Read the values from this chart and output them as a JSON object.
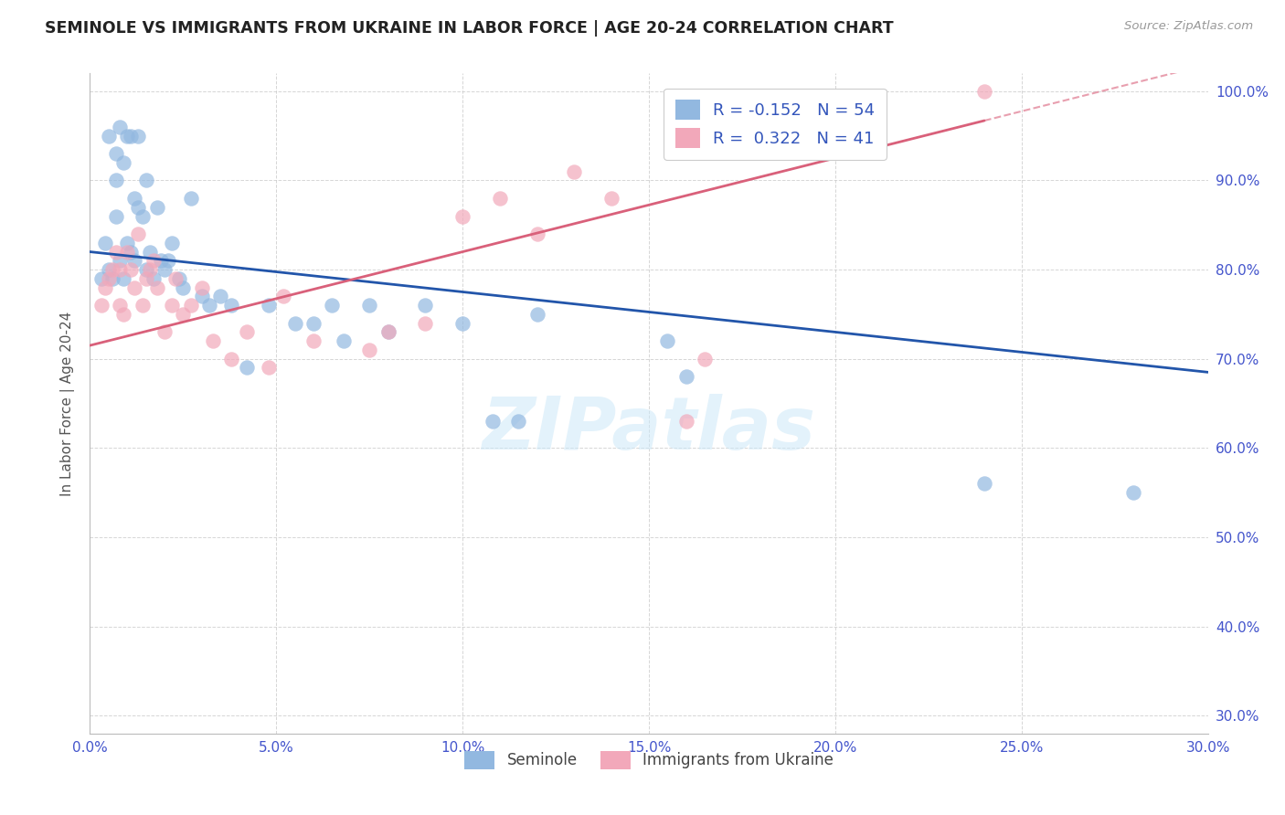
{
  "title": "SEMINOLE VS IMMIGRANTS FROM UKRAINE IN LABOR FORCE | AGE 20-24 CORRELATION CHART",
  "source": "Source: ZipAtlas.com",
  "ylabel": "In Labor Force | Age 20-24",
  "xlim": [
    0.0,
    0.3
  ],
  "ylim": [
    0.28,
    1.02
  ],
  "xtick_vals": [
    0.0,
    0.05,
    0.1,
    0.15,
    0.2,
    0.25,
    0.3
  ],
  "xtick_labels": [
    "0.0%",
    "5.0%",
    "10.0%",
    "15.0%",
    "20.0%",
    "25.0%",
    "30.0%"
  ],
  "ytick_vals": [
    0.3,
    0.4,
    0.5,
    0.6,
    0.7,
    0.8,
    0.9,
    1.0
  ],
  "ytick_labels": [
    "30.0%",
    "40.0%",
    "50.0%",
    "60.0%",
    "70.0%",
    "80.0%",
    "90.0%",
    "100.0%"
  ],
  "seminole_color": "#92b8e0",
  "ukraine_color": "#f2a8ba",
  "seminole_line_color": "#2255aa",
  "ukraine_line_color": "#d9607a",
  "watermark": "ZIPatlas",
  "background_color": "#ffffff",
  "grid_color": "#cccccc",
  "seminole_R": -0.152,
  "seminole_N": 54,
  "ukraine_R": 0.322,
  "ukraine_N": 41,
  "seminole_legend_label": "R = -0.152   N = 54",
  "ukraine_legend_label": "R =  0.322   N = 41",
  "legend_text_color": "#3355bb",
  "seminole_bottom_label": "Seminole",
  "ukraine_bottom_label": "Immigrants from Ukraine",
  "seminole_x": [
    0.003,
    0.004,
    0.005,
    0.005,
    0.006,
    0.007,
    0.007,
    0.007,
    0.008,
    0.008,
    0.009,
    0.009,
    0.01,
    0.01,
    0.011,
    0.011,
    0.012,
    0.012,
    0.013,
    0.013,
    0.014,
    0.015,
    0.015,
    0.016,
    0.017,
    0.018,
    0.019,
    0.02,
    0.021,
    0.022,
    0.024,
    0.025,
    0.027,
    0.03,
    0.032,
    0.035,
    0.038,
    0.042,
    0.048,
    0.055,
    0.06,
    0.065,
    0.068,
    0.075,
    0.08,
    0.09,
    0.1,
    0.108,
    0.115,
    0.12,
    0.155,
    0.16,
    0.24,
    0.28
  ],
  "seminole_y": [
    0.79,
    0.83,
    0.8,
    0.95,
    0.79,
    0.86,
    0.9,
    0.93,
    0.81,
    0.96,
    0.79,
    0.92,
    0.83,
    0.95,
    0.82,
    0.95,
    0.81,
    0.88,
    0.87,
    0.95,
    0.86,
    0.8,
    0.9,
    0.82,
    0.79,
    0.87,
    0.81,
    0.8,
    0.81,
    0.83,
    0.79,
    0.78,
    0.88,
    0.77,
    0.76,
    0.77,
    0.76,
    0.69,
    0.76,
    0.74,
    0.74,
    0.76,
    0.72,
    0.76,
    0.73,
    0.76,
    0.74,
    0.63,
    0.63,
    0.75,
    0.72,
    0.68,
    0.56,
    0.55
  ],
  "ukraine_x": [
    0.003,
    0.004,
    0.005,
    0.006,
    0.007,
    0.008,
    0.008,
    0.009,
    0.01,
    0.011,
    0.012,
    0.013,
    0.014,
    0.015,
    0.016,
    0.017,
    0.018,
    0.02,
    0.022,
    0.023,
    0.025,
    0.027,
    0.03,
    0.033,
    0.038,
    0.042,
    0.048,
    0.052,
    0.06,
    0.075,
    0.08,
    0.09,
    0.1,
    0.11,
    0.12,
    0.13,
    0.14,
    0.16,
    0.165,
    0.185,
    0.24
  ],
  "ukraine_y": [
    0.76,
    0.78,
    0.79,
    0.8,
    0.82,
    0.76,
    0.8,
    0.75,
    0.82,
    0.8,
    0.78,
    0.84,
    0.76,
    0.79,
    0.8,
    0.81,
    0.78,
    0.73,
    0.76,
    0.79,
    0.75,
    0.76,
    0.78,
    0.72,
    0.7,
    0.73,
    0.69,
    0.77,
    0.72,
    0.71,
    0.73,
    0.74,
    0.86,
    0.88,
    0.84,
    0.91,
    0.88,
    0.63,
    0.7,
    0.97,
    1.0
  ]
}
